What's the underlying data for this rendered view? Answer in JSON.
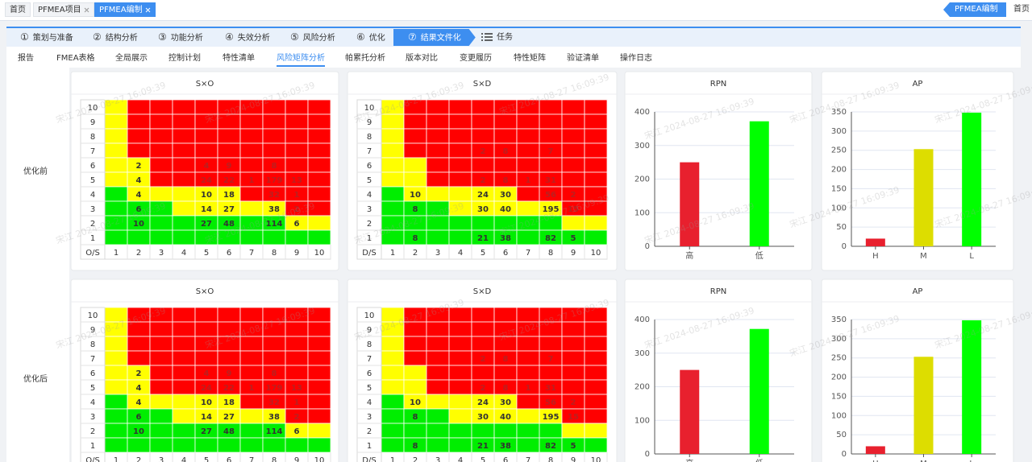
{
  "tabs": [
    {
      "label": "首页"
    },
    {
      "label": "PFMEA项目"
    },
    {
      "label": "PFMEA编制"
    }
  ],
  "right_tabs": [
    "PFMEA编制",
    "首页"
  ],
  "steps": [
    {
      "num": "①",
      "label": "策划与准备"
    },
    {
      "num": "②",
      "label": "结构分析"
    },
    {
      "num": "③",
      "label": "功能分析"
    },
    {
      "num": "④",
      "label": "失效分析"
    },
    {
      "num": "⑤",
      "label": "风险分析"
    },
    {
      "num": "⑥",
      "label": "优化"
    },
    {
      "num": "⑦",
      "label": "结果文件化"
    },
    {
      "label": "任务"
    }
  ],
  "subtabs": [
    "报告",
    "FMEA表格",
    "全局展示",
    "控制计划",
    "特性清单",
    "风险矩阵分析",
    "帕累托分析",
    "版本对比",
    "变更履历",
    "特性矩阵",
    "验证清单",
    "操作日志"
  ],
  "watermark": "宋江 2024-08-27 16:09:39",
  "sections": [
    "优化前",
    "优化后"
  ],
  "chart_data": [
    {
      "type": "matrix",
      "title": "S×O",
      "corner": "O/S",
      "row_labels": [
        10,
        9,
        8,
        7,
        6,
        5,
        4,
        3,
        2,
        1
      ],
      "col_labels": [
        1,
        2,
        3,
        4,
        5,
        6,
        7,
        8,
        9,
        10
      ],
      "palette": {
        "H": "#ff0000",
        "M": "#ffff00",
        "L": "#00ee00"
      },
      "levels": [
        "MHHHHHHHHH",
        "MHHHHHHHHH",
        "MHHHHHHHHH",
        "MHHHHHHHHH",
        "MMHHHHHHHH",
        "MMHHHHHHHH",
        "LMMMMMHHHH",
        "LLLMMMMMHH",
        "LLLLLLLLMM",
        "LLLLLLLLLL"
      ],
      "values": [
        [
          null,
          null,
          null,
          null,
          null,
          null,
          null,
          null,
          null,
          null
        ],
        [
          null,
          null,
          null,
          null,
          null,
          null,
          null,
          null,
          null,
          null
        ],
        [
          null,
          null,
          null,
          null,
          null,
          null,
          null,
          null,
          null,
          null
        ],
        [
          null,
          null,
          null,
          null,
          null,
          null,
          null,
          null,
          null,
          null
        ],
        [
          null,
          2,
          null,
          null,
          4,
          9,
          null,
          8,
          null,
          null
        ],
        [
          null,
          4,
          null,
          null,
          24,
          22,
          1,
          179,
          13,
          null
        ],
        [
          null,
          4,
          null,
          null,
          10,
          18,
          null,
          32,
          1,
          null
        ],
        [
          null,
          6,
          null,
          null,
          14,
          27,
          null,
          38,
          2,
          null
        ],
        [
          null,
          10,
          null,
          null,
          27,
          48,
          null,
          114,
          6,
          null
        ],
        [
          null,
          null,
          null,
          null,
          null,
          null,
          null,
          null,
          null,
          null
        ]
      ]
    },
    {
      "type": "matrix",
      "title": "S×D",
      "corner": "D/S",
      "row_labels": [
        10,
        9,
        8,
        7,
        6,
        5,
        4,
        3,
        2,
        1
      ],
      "col_labels": [
        1,
        2,
        3,
        4,
        5,
        6,
        7,
        8,
        9,
        10
      ],
      "palette": {
        "H": "#ff0000",
        "M": "#ffff00",
        "L": "#00ee00"
      },
      "levels": [
        "MHHHHHHHHH",
        "MHHHHHHHHH",
        "MHHHHHHHHH",
        "MHHHHHHHHH",
        "MMHHHHHHHH",
        "MMHHHHHHHH",
        "LMMMMMHHHH",
        "LLLMMMMMHH",
        "LLLLLLLLMM",
        "LLLLLLLLLL"
      ],
      "values": [
        [
          null,
          null,
          null,
          null,
          null,
          null,
          null,
          null,
          null,
          null
        ],
        [
          null,
          null,
          null,
          null,
          null,
          null,
          null,
          null,
          null,
          null
        ],
        [
          null,
          null,
          null,
          null,
          null,
          null,
          null,
          null,
          null,
          null
        ],
        [
          null,
          null,
          null,
          null,
          2,
          8,
          null,
          7,
          null,
          null
        ],
        [
          null,
          null,
          null,
          null,
          null,
          null,
          null,
          null,
          null,
          null
        ],
        [
          null,
          null,
          null,
          null,
          2,
          8,
          1,
          31,
          null,
          null
        ],
        [
          null,
          10,
          null,
          null,
          24,
          30,
          null,
          56,
          2,
          null
        ],
        [
          null,
          8,
          null,
          null,
          30,
          40,
          null,
          195,
          15,
          null
        ],
        [
          null,
          null,
          null,
          null,
          null,
          null,
          null,
          null,
          null,
          null
        ],
        [
          null,
          8,
          null,
          null,
          21,
          38,
          null,
          82,
          5,
          null
        ]
      ]
    },
    {
      "type": "bar",
      "title": "RPN",
      "categories": [
        "高",
        "低"
      ],
      "values": [
        250,
        372
      ],
      "colors": [
        "#e8202e",
        "#00ff00"
      ],
      "ylim": [
        0,
        400
      ],
      "yticks": [
        0,
        100,
        200,
        300,
        400
      ],
      "grid": true
    },
    {
      "type": "bar",
      "title": "AP",
      "categories": [
        "H",
        "M",
        "L"
      ],
      "values": [
        20,
        253,
        348
      ],
      "colors": [
        "#e8202e",
        "#dddd00",
        "#00ff00"
      ],
      "ylim": [
        0,
        350
      ],
      "yticks": [
        0,
        50,
        100,
        150,
        200,
        250,
        300,
        350
      ],
      "grid": true
    },
    {
      "type": "matrix",
      "title": "S×O",
      "corner": "O/S",
      "row_labels": [
        10,
        9,
        8,
        7,
        6,
        5,
        4,
        3,
        2,
        1
      ],
      "col_labels": [
        1,
        2,
        3,
        4,
        5,
        6,
        7,
        8,
        9,
        10
      ],
      "palette": {
        "H": "#ff0000",
        "M": "#ffff00",
        "L": "#00ee00"
      },
      "levels": [
        "MHHHHHHHHH",
        "MHHHHHHHHH",
        "MHHHHHHHHH",
        "MHHHHHHHHH",
        "MMHHHHHHHH",
        "MMHHHHHHHH",
        "LMMMMMHHHH",
        "LLLMMMMMHH",
        "LLLLLLLLMM",
        "LLLLLLLLLL"
      ],
      "values": [
        [
          null,
          null,
          null,
          null,
          null,
          null,
          null,
          null,
          null,
          null
        ],
        [
          null,
          null,
          null,
          null,
          null,
          null,
          null,
          null,
          null,
          null
        ],
        [
          null,
          null,
          null,
          null,
          null,
          null,
          null,
          null,
          null,
          null
        ],
        [
          null,
          null,
          null,
          null,
          null,
          null,
          null,
          null,
          null,
          null
        ],
        [
          null,
          2,
          null,
          null,
          4,
          9,
          null,
          8,
          null,
          null
        ],
        [
          null,
          4,
          null,
          null,
          24,
          22,
          1,
          179,
          13,
          null
        ],
        [
          null,
          4,
          null,
          null,
          10,
          18,
          null,
          32,
          1,
          null
        ],
        [
          null,
          6,
          null,
          null,
          14,
          27,
          null,
          38,
          2,
          null
        ],
        [
          null,
          10,
          null,
          null,
          27,
          48,
          null,
          114,
          6,
          null
        ],
        [
          null,
          null,
          null,
          null,
          null,
          null,
          null,
          null,
          null,
          null
        ]
      ]
    },
    {
      "type": "matrix",
      "title": "S×D",
      "corner": "D/S",
      "row_labels": [
        10,
        9,
        8,
        7,
        6,
        5,
        4,
        3,
        2,
        1
      ],
      "col_labels": [
        1,
        2,
        3,
        4,
        5,
        6,
        7,
        8,
        9,
        10
      ],
      "palette": {
        "H": "#ff0000",
        "M": "#ffff00",
        "L": "#00ee00"
      },
      "levels": [
        "MHHHHHHHHH",
        "MHHHHHHHHH",
        "MHHHHHHHHH",
        "MHHHHHHHHH",
        "MMHHHHHHHH",
        "MMHHHHHHHH",
        "LMMMMMHHHH",
        "LLLMMMMMHH",
        "LLLLLLLLMM",
        "LLLLLLLLLL"
      ],
      "values": [
        [
          null,
          null,
          null,
          null,
          null,
          null,
          null,
          null,
          null,
          null
        ],
        [
          null,
          null,
          null,
          null,
          null,
          null,
          null,
          null,
          null,
          null
        ],
        [
          null,
          null,
          null,
          null,
          null,
          null,
          null,
          null,
          null,
          null
        ],
        [
          null,
          null,
          null,
          null,
          2,
          8,
          null,
          7,
          null,
          null
        ],
        [
          null,
          null,
          null,
          null,
          null,
          null,
          null,
          null,
          null,
          null
        ],
        [
          null,
          null,
          null,
          null,
          2,
          8,
          1,
          31,
          null,
          null
        ],
        [
          null,
          10,
          null,
          null,
          24,
          30,
          null,
          56,
          2,
          null
        ],
        [
          null,
          8,
          null,
          null,
          30,
          40,
          null,
          195,
          15,
          null
        ],
        [
          null,
          null,
          null,
          null,
          null,
          null,
          null,
          null,
          null,
          null
        ],
        [
          null,
          8,
          null,
          null,
          21,
          38,
          null,
          82,
          5,
          null
        ]
      ]
    },
    {
      "type": "bar",
      "title": "RPN",
      "categories": [
        "高",
        "低"
      ],
      "values": [
        250,
        372
      ],
      "colors": [
        "#e8202e",
        "#00ff00"
      ],
      "ylim": [
        0,
        400
      ],
      "yticks": [
        0,
        100,
        200,
        300,
        400
      ],
      "grid": true
    },
    {
      "type": "bar",
      "title": "AP",
      "categories": [
        "H",
        "M",
        "L"
      ],
      "values": [
        20,
        253,
        348
      ],
      "colors": [
        "#e8202e",
        "#dddd00",
        "#00ff00"
      ],
      "ylim": [
        0,
        350
      ],
      "yticks": [
        0,
        50,
        100,
        150,
        200,
        250,
        300,
        350
      ],
      "grid": true
    }
  ]
}
